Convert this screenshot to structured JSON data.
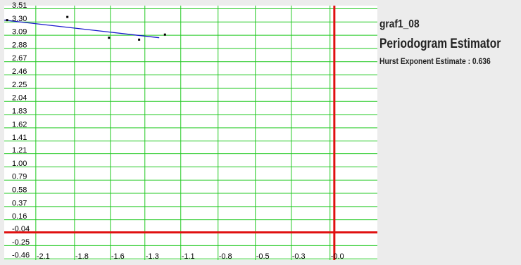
{
  "chart_data": {
    "type": "scatter",
    "name": "graf1_08",
    "title": "Periodogram Estimator",
    "annotation_label": "Hurst Exponent Estimate :",
    "annotation_value": "0.636",
    "xlim": [
      -2.3,
      0.3
    ],
    "ylim": [
      -0.48,
      3.56
    ],
    "x_tick_labels": [
      "-2.1",
      "-1.8",
      "-1.6",
      "-1.3",
      "-1.1",
      "-0.8",
      "-0.5",
      "-0.3",
      "-0.0"
    ],
    "x_tick_values": [
      -2.08,
      -1.81,
      -1.56,
      -1.32,
      -1.07,
      -0.81,
      -0.55,
      -0.3,
      -0.03
    ],
    "y_tick_labels": [
      "3.51",
      "3.30",
      "3.09",
      "2.88",
      "2.67",
      "2.46",
      "2.25",
      "2.04",
      "1.83",
      "1.62",
      "1.41",
      "1.21",
      "1.00",
      "0.79",
      "0.58",
      "0.37",
      "0.16",
      "-0.04",
      "-0.25",
      "-0.46"
    ],
    "y_tick_values": [
      3.51,
      3.3,
      3.09,
      2.88,
      2.67,
      2.46,
      2.25,
      2.04,
      1.83,
      1.62,
      1.41,
      1.21,
      1.0,
      0.79,
      0.58,
      0.37,
      0.16,
      -0.04,
      -0.25,
      -0.46
    ],
    "points": [
      {
        "x": -2.28,
        "y": 3.33
      },
      {
        "x": -1.86,
        "y": 3.38
      },
      {
        "x": -1.57,
        "y": 3.05
      },
      {
        "x": -1.36,
        "y": 3.02
      },
      {
        "x": -1.18,
        "y": 3.1
      }
    ],
    "fit_line": [
      {
        "x": -2.3,
        "y": 3.33
      },
      {
        "x": -1.22,
        "y": 3.05
      }
    ],
    "axis_x_value": 0.0,
    "axis_y_value": -0.04,
    "grid": true,
    "colors": {
      "background": "#ffffff",
      "grid": "#22c922",
      "axis": "#e01010",
      "fit_line": "#1a1acc",
      "points": "#000000"
    }
  }
}
